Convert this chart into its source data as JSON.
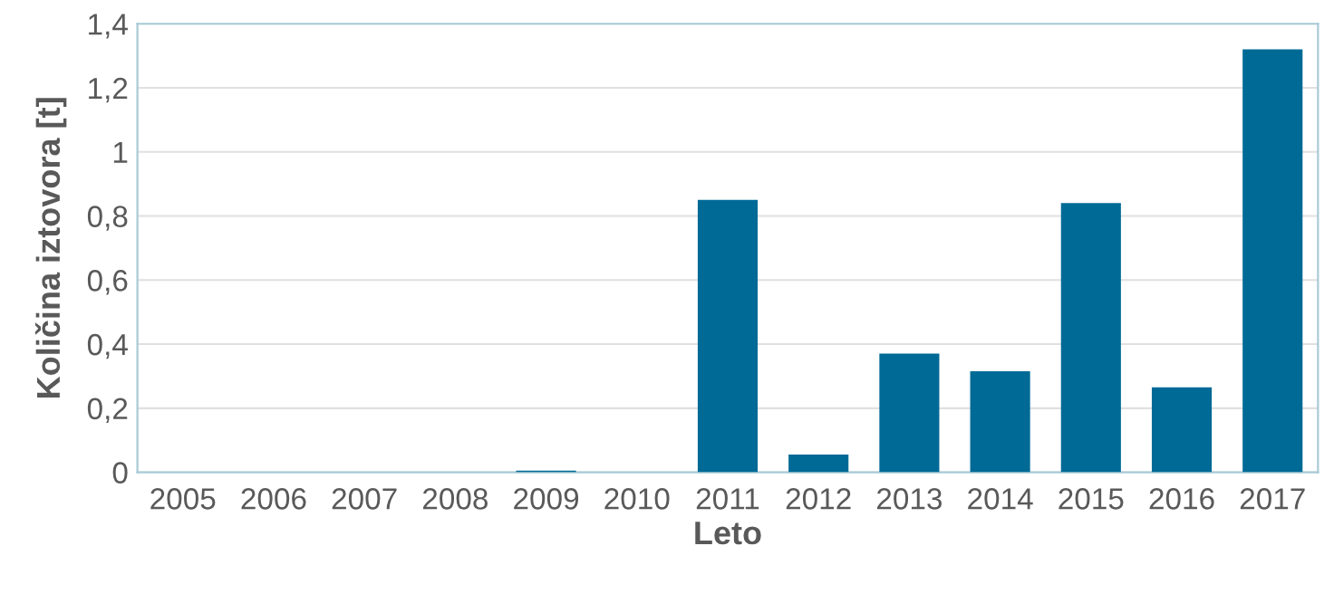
{
  "chart_data": {
    "type": "bar",
    "xlabel": "Leto",
    "ylabel": "Količina iztovora [t]",
    "categories": [
      "2005",
      "2006",
      "2007",
      "2008",
      "2009",
      "2010",
      "2011",
      "2012",
      "2013",
      "2014",
      "2015",
      "2016",
      "2017"
    ],
    "values": [
      0,
      0,
      0,
      0,
      0.005,
      0,
      0.85,
      0.055,
      0.37,
      0.315,
      0.84,
      0.265,
      1.32
    ],
    "color": "#006a96",
    "ylim": [
      0,
      1.4
    ],
    "yticks": [
      0,
      {
        "value": 0.2,
        "label": "0,2"
      },
      {
        "value": 0.4,
        "label": "0,4"
      },
      {
        "value": 0.6,
        "label": "0,6"
      },
      {
        "value": 0.8,
        "label": "0,8"
      },
      1,
      {
        "value": 1.2,
        "label": "1,2"
      },
      {
        "value": 1.4,
        "label": "1,4"
      }
    ],
    "grid": "y",
    "legend": false
  }
}
